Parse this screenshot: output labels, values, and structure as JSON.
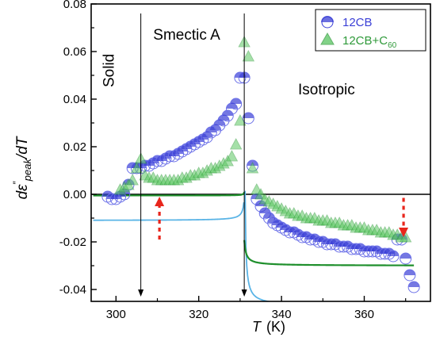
{
  "chart_data": {
    "type": "scatter",
    "ylabel": "dε″peak/dT",
    "xlabel": "T",
    "xunit": "(K)",
    "xlim": [
      294,
      376
    ],
    "ylim": [
      -0.045,
      0.08
    ],
    "xticks": [
      300,
      320,
      340,
      360
    ],
    "yticks": [
      0.08,
      0.06,
      0.04,
      0.02,
      0.0,
      -0.02,
      -0.04
    ],
    "ytick_labels": [
      "0.08",
      "0.06",
      "0.04",
      "0.02",
      "0.00",
      "-0.02",
      "-0.04"
    ],
    "legend_position": "top-right",
    "zero_line": true,
    "phase_labels": [
      {
        "text": "Solid",
        "x": 299.5,
        "y": 0.045,
        "rotated": true
      },
      {
        "text": "Smectic A",
        "x": 309,
        "y": 0.065
      },
      {
        "text": "Isotropic",
        "x": 344,
        "y": 0.042
      }
    ],
    "transition_lines": [
      {
        "x": 306,
        "y_top": 0.076,
        "y_bottom": -0.043
      },
      {
        "x": 331,
        "y_top": 0.076,
        "y_bottom": -0.043
      }
    ],
    "annotation_arrows": [
      {
        "x": 310.5,
        "y_tail": -0.019,
        "y_head": -0.001,
        "color": "#e8261c"
      },
      {
        "x": 369.5,
        "y_tail": -0.0015,
        "y_head": -0.018,
        "color": "#e8261c"
      }
    ],
    "series": [
      {
        "name": "12CB",
        "marker": "circle",
        "color": "#3a3fd6",
        "fit_color": "#5ab4e6",
        "x": [
          298,
          299,
          300,
          301,
          302,
          303,
          304,
          305,
          306,
          307,
          308,
          309,
          310,
          311,
          312,
          313,
          314,
          315,
          316,
          317,
          318,
          319,
          320,
          321,
          322,
          323,
          324,
          325,
          326,
          327,
          328,
          329,
          330,
          331,
          332,
          333,
          334,
          335,
          336,
          337,
          338,
          339,
          340,
          341,
          342,
          343,
          344,
          345,
          346,
          347,
          348,
          349,
          350,
          351,
          352,
          353,
          354,
          355,
          356,
          357,
          358,
          359,
          360,
          361,
          362,
          363,
          364,
          365,
          366,
          367,
          368,
          369,
          370,
          371,
          372
        ],
        "y": [
          -0.001,
          -0.002,
          -0.002,
          -0.001,
          0.0,
          0.004,
          0.011,
          0.011,
          0.011,
          0.012,
          0.012,
          0.013,
          0.014,
          0.014,
          0.015,
          0.016,
          0.016,
          0.017,
          0.018,
          0.019,
          0.02,
          0.021,
          0.022,
          0.023,
          0.024,
          0.026,
          0.027,
          0.029,
          0.031,
          0.033,
          0.036,
          0.038,
          0.049,
          0.049,
          0.032,
          0.012,
          -0.002,
          -0.005,
          -0.008,
          -0.01,
          -0.012,
          -0.013,
          -0.014,
          -0.015,
          -0.016,
          -0.016,
          -0.017,
          -0.018,
          -0.018,
          -0.019,
          -0.019,
          -0.02,
          -0.02,
          -0.021,
          -0.021,
          -0.021,
          -0.022,
          -0.022,
          -0.022,
          -0.023,
          -0.023,
          -0.023,
          -0.024,
          -0.024,
          -0.024,
          -0.024,
          -0.025,
          -0.025,
          -0.025,
          -0.026,
          -0.019,
          -0.019,
          -0.027,
          -0.034,
          -0.039
        ]
      },
      {
        "name_main": "12CB+C",
        "name_sub": "60",
        "marker": "triangle",
        "color": "#2f9a3a",
        "fit_color": "#1f8f2c",
        "x": [
          301,
          302,
          303,
          304,
          305,
          306,
          307,
          308,
          309,
          310,
          311,
          312,
          313,
          314,
          315,
          316,
          317,
          318,
          319,
          320,
          321,
          322,
          323,
          324,
          325,
          326,
          327,
          328,
          329,
          330,
          331,
          332,
          333,
          334,
          335,
          336,
          337,
          338,
          339,
          340,
          341,
          342,
          343,
          344,
          345,
          346,
          347,
          348,
          349,
          350,
          351,
          352,
          353,
          354,
          355,
          356,
          357,
          358,
          359,
          360,
          361,
          362,
          363,
          364,
          365,
          366,
          367,
          368,
          369,
          370
        ],
        "y": [
          0.002,
          0.003,
          0.004,
          0.006,
          0.011,
          0.015,
          0.008,
          0.007,
          0.007,
          0.006,
          0.006,
          0.006,
          0.006,
          0.006,
          0.006,
          0.007,
          0.007,
          0.008,
          0.008,
          0.009,
          0.009,
          0.01,
          0.011,
          0.011,
          0.012,
          0.013,
          0.014,
          0.016,
          0.021,
          0.031,
          0.064,
          0.058,
          0.011,
          0.002,
          0.0,
          -0.002,
          -0.003,
          -0.004,
          -0.005,
          -0.006,
          -0.007,
          -0.008,
          -0.008,
          -0.009,
          -0.009,
          -0.01,
          -0.01,
          -0.01,
          -0.011,
          -0.011,
          -0.011,
          -0.012,
          -0.012,
          -0.012,
          -0.013,
          -0.013,
          -0.013,
          -0.014,
          -0.014,
          -0.014,
          -0.015,
          -0.015,
          -0.015,
          -0.016,
          -0.016,
          -0.016,
          -0.017,
          -0.017,
          -0.018,
          -0.018
        ]
      }
    ],
    "fits": [
      {
        "series": "12CB",
        "side": "low",
        "tc": 331.3,
        "a": 0.0032,
        "b": 0.0,
        "c": -0.011,
        "x_from": 294.5,
        "x_to": 330.9
      },
      {
        "series": "12CB",
        "side": "high",
        "tc": 331.0,
        "a": 0.0105,
        "b": 0.0,
        "c": -0.047,
        "x_from": 331.2,
        "x_to": 375
      },
      {
        "series": "12CB+C60",
        "side": "low",
        "tc": 331.2,
        "a": 0.0003,
        "b": 0.0,
        "c": -0.0005,
        "x_from": 294.5,
        "x_to": 331.0
      },
      {
        "series": "12CB+C60",
        "side": "high",
        "tc": 330.6,
        "a": 0.0045,
        "b": 0.0,
        "c": -0.03,
        "x_from": 331.0,
        "x_to": 372
      }
    ]
  }
}
